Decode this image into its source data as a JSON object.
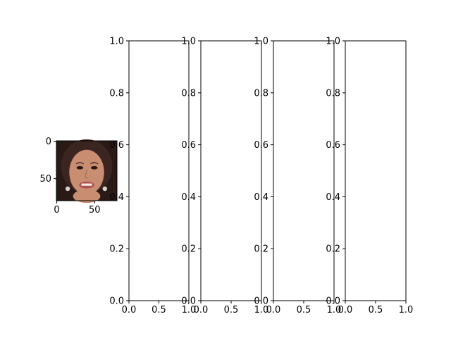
{
  "chart_data": [
    {
      "type": "image",
      "image_icon": "face-photo-icon",
      "xlim": [
        -0.5,
        79.5
      ],
      "ylim": [
        79.5,
        -0.5
      ],
      "xticks": [
        0,
        50
      ],
      "xtick_labels": [
        "0",
        "50"
      ],
      "yticks": [
        0,
        50
      ],
      "ytick_labels": [
        "0",
        "50"
      ]
    },
    {
      "type": "empty",
      "xlim": [
        0,
        1
      ],
      "ylim": [
        0,
        1
      ],
      "xticks": [
        0,
        0.5,
        1
      ],
      "xtick_labels": [
        "0.0",
        "0.5",
        "1.0"
      ],
      "yticks": [
        0,
        0.2,
        0.4,
        0.6,
        0.8,
        1
      ],
      "ytick_labels": [
        "0.0",
        "0.2",
        "0.4",
        "0.6",
        "0.8",
        "1.0"
      ]
    },
    {
      "type": "empty",
      "xlim": [
        0,
        1
      ],
      "ylim": [
        0,
        1
      ],
      "xticks": [
        0,
        0.5,
        1
      ],
      "xtick_labels": [
        "0.0",
        "0.5",
        "1.0"
      ],
      "yticks": [
        0,
        0.2,
        0.4,
        0.6,
        0.8,
        1
      ],
      "ytick_labels": [
        "0.0",
        "0.2",
        "0.4",
        "0.6",
        "0.8",
        "1.0"
      ]
    },
    {
      "type": "empty",
      "xlim": [
        0,
        1
      ],
      "ylim": [
        0,
        1
      ],
      "xticks": [
        0,
        0.5,
        1
      ],
      "xtick_labels": [
        "0.0",
        "0.5",
        "1.0"
      ],
      "yticks": [
        0,
        0.2,
        0.4,
        0.6,
        0.8,
        1
      ],
      "ytick_labels": [
        "0.0",
        "0.2",
        "0.4",
        "0.6",
        "0.8",
        "1.0"
      ]
    },
    {
      "type": "empty",
      "xlim": [
        0,
        1
      ],
      "ylim": [
        0,
        1
      ],
      "xticks": [
        0,
        0.5,
        1
      ],
      "xtick_labels": [
        "0.0",
        "0.5",
        "1.0"
      ],
      "yticks": [
        0,
        0.2,
        0.4,
        0.6,
        0.8,
        1
      ],
      "ytick_labels": [
        "0.0",
        "0.2",
        "0.4",
        "0.6",
        "0.8",
        "1.0"
      ]
    }
  ],
  "colors": {
    "background": "#ffffff",
    "axis": "#000000",
    "photo_background": "#2a1a16",
    "hair": "#3a2520",
    "skin": "#c98d72",
    "lips": "#b0504f"
  }
}
